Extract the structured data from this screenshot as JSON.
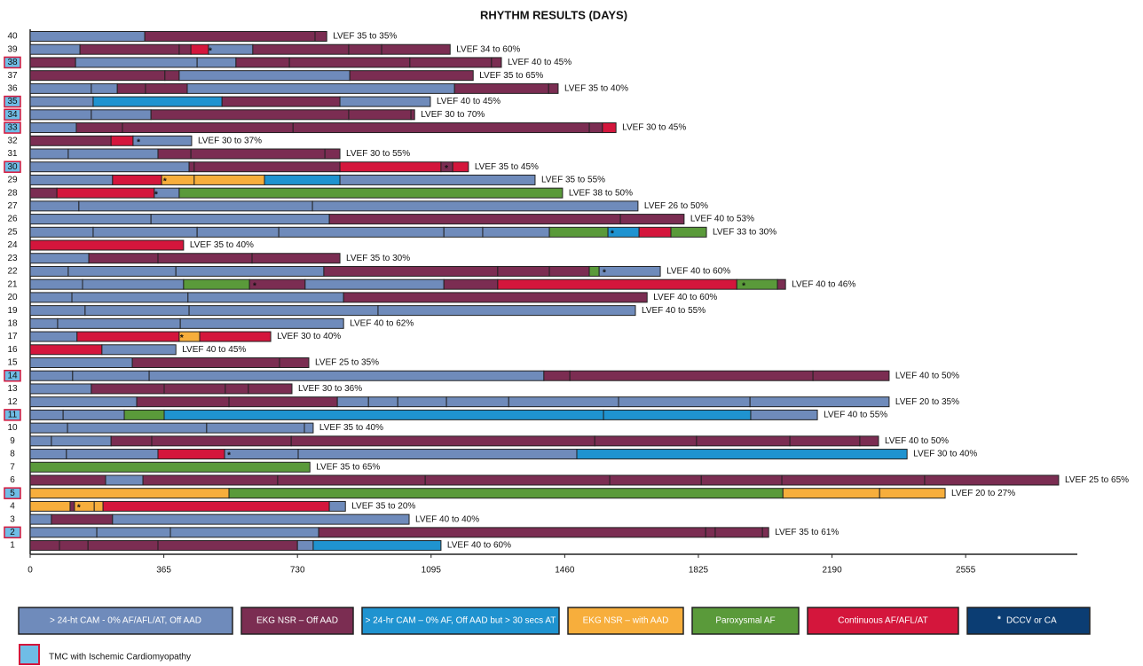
{
  "chart_data": {
    "type": "timeline",
    "title": "RHYTHM RESULTS (DAYS)",
    "xlim": [
      0,
      2860
    ],
    "xticks": [
      0,
      365,
      730,
      1095,
      1460,
      1825,
      2190,
      2555
    ],
    "states": [
      {
        "name": "> 24-ht CAM - 0% AF/AFL/AT, Off AAD",
        "color": "#6f8bbb"
      },
      {
        "name": "EKG NSR – Off AAD",
        "color": "#7b2d52"
      },
      {
        "name": "> 24-hr CAM – 0% AF, Off AAD but > 30 secs AT",
        "color": "#1f93d0"
      },
      {
        "name": "EKG NSR – with AAD",
        "color": "#f7ae3c"
      },
      {
        "name": "Paroxysmal AF",
        "color": "#5a9a3a"
      },
      {
        "name": "Continuous AF/AFL/AT",
        "color": "#d4163c"
      }
    ],
    "star_legend": {
      "symbol": "*",
      "name": "DCCV or CA",
      "color": "#0b3d73"
    },
    "ischemic_legend": {
      "name": "TMC with Ischemic Cardiomyopathy",
      "fill": "#6fbde6",
      "border": "#d4163c"
    },
    "rows": [
      {
        "label": "40",
        "annotation": "LVEF 35 to 35%",
        "segments": [
          [
            0,
            313
          ],
          [
            1,
            465
          ],
          [
            1,
            32
          ]
        ]
      },
      {
        "label": "39",
        "annotation": "LVEF 34 to 60%",
        "segments": [
          [
            0,
            136
          ],
          [
            1,
            271
          ],
          [
            1,
            32
          ],
          [
            5,
            48
          ],
          [
            0,
            121
          ],
          [
            1,
            262
          ],
          [
            1,
            90
          ],
          [
            1,
            187
          ]
        ],
        "stars": [
          492
        ]
      },
      {
        "label": "38",
        "ischemic": true,
        "annotation": "LVEF 40 to 45%",
        "segments": [
          [
            1,
            124
          ],
          [
            0,
            332
          ],
          [
            0,
            106
          ],
          [
            1,
            146
          ],
          [
            1,
            329
          ],
          [
            1,
            223
          ],
          [
            1,
            27
          ]
        ]
      },
      {
        "label": "37",
        "annotation": "LVEF 35 to 65%",
        "segments": [
          [
            1,
            368
          ],
          [
            1,
            39
          ],
          [
            0,
            466
          ],
          [
            1,
            337
          ]
        ]
      },
      {
        "label": "36",
        "annotation": "LVEF 35 to 40%",
        "segments": [
          [
            0,
            167
          ],
          [
            0,
            71
          ],
          [
            1,
            77
          ],
          [
            1,
            114
          ],
          [
            0,
            730
          ],
          [
            1,
            257
          ],
          [
            1,
            26
          ]
        ]
      },
      {
        "label": "35",
        "ischemic": true,
        "annotation": "LVEF 40 to 45%",
        "segments": [
          [
            0,
            172
          ],
          [
            2,
            352
          ],
          [
            1,
            322
          ],
          [
            0,
            247
          ]
        ]
      },
      {
        "label": "34",
        "ischemic": true,
        "annotation": "LVEF 30 to 70%",
        "segments": [
          [
            0,
            167
          ],
          [
            0,
            163
          ],
          [
            1,
            540
          ],
          [
            1,
            170
          ],
          [
            1,
            10
          ]
        ]
      },
      {
        "label": "33",
        "ischemic": true,
        "annotation": "LVEF 30 to 45%",
        "segments": [
          [
            0,
            126
          ],
          [
            1,
            126
          ],
          [
            1,
            466
          ],
          [
            1,
            809
          ],
          [
            1,
            36
          ],
          [
            5,
            37
          ]
        ]
      },
      {
        "label": "32",
        "annotation": "LVEF 30 to 37%",
        "segments": [
          [
            1,
            221
          ],
          [
            5,
            60
          ],
          [
            0,
            160
          ]
        ],
        "stars": [
          296
        ]
      },
      {
        "label": "31",
        "annotation": "LVEF 30 to 55%",
        "segments": [
          [
            0,
            104
          ],
          [
            0,
            245
          ],
          [
            1,
            90
          ],
          [
            1,
            366
          ],
          [
            1,
            41
          ]
        ]
      },
      {
        "label": "30",
        "ischemic": true,
        "annotation": "LVEF 35 to 45%",
        "segments": [
          [
            0,
            434
          ],
          [
            1,
            14
          ],
          [
            1,
            398
          ],
          [
            5,
            276
          ],
          [
            1,
            32
          ],
          [
            5,
            43
          ]
        ],
        "stars": [
          1137
        ]
      },
      {
        "label": "29",
        "annotation": "LVEF 35 to 55%",
        "segments": [
          [
            0,
            225
          ],
          [
            5,
            134
          ],
          [
            3,
            89
          ],
          [
            3,
            192
          ],
          [
            2,
            206
          ],
          [
            0,
            533
          ]
        ],
        "stars": [
          368
        ]
      },
      {
        "label": "28",
        "annotation": "LVEF 38 to 50%",
        "segments": [
          [
            1,
            73
          ],
          [
            5,
            266
          ],
          [
            0,
            68
          ],
          [
            4,
            1047
          ]
        ],
        "stars": [
          344
        ]
      },
      {
        "label": "27",
        "annotation": "LVEF 26 to 50%",
        "segments": [
          [
            0,
            133
          ],
          [
            0,
            638
          ],
          [
            0,
            889
          ]
        ]
      },
      {
        "label": "26",
        "annotation": "LVEF 40 to 53%",
        "segments": [
          [
            0,
            330
          ],
          [
            0,
            487
          ],
          [
            1,
            795
          ],
          [
            1,
            174
          ]
        ]
      },
      {
        "label": "25",
        "annotation": "LVEF 33 to 30%",
        "segments": [
          [
            0,
            172
          ],
          [
            0,
            284
          ],
          [
            0,
            223
          ],
          [
            0,
            451
          ],
          [
            0,
            106
          ],
          [
            0,
            182
          ],
          [
            4,
            160
          ],
          [
            2,
            85
          ],
          [
            5,
            87
          ],
          [
            4,
            97
          ]
        ],
        "stars": [
          1590
        ]
      },
      {
        "label": "24",
        "annotation": "LVEF 35 to 40%",
        "segments": [
          [
            5,
            419
          ]
        ]
      },
      {
        "label": "23",
        "annotation": "LVEF 35 to 30%",
        "segments": [
          [
            0,
            160
          ],
          [
            1,
            189
          ],
          [
            1,
            257
          ],
          [
            1,
            240
          ]
        ]
      },
      {
        "label": "22",
        "annotation": "LVEF 40 to 60%",
        "segments": [
          [
            0,
            104
          ],
          [
            0,
            294
          ],
          [
            0,
            404
          ],
          [
            1,
            475
          ],
          [
            1,
            141
          ],
          [
            1,
            109
          ],
          [
            4,
            27
          ],
          [
            0,
            167
          ]
        ],
        "stars": [
          1568
        ]
      },
      {
        "label": "21",
        "annotation": "LVEF 40 to 46%",
        "segments": [
          [
            0,
            143
          ],
          [
            0,
            276
          ],
          [
            4,
            180
          ],
          [
            1,
            152
          ],
          [
            0,
            379
          ],
          [
            1,
            147
          ],
          [
            5,
            653
          ],
          [
            4,
            111
          ],
          [
            1,
            22
          ]
        ],
        "stars": [
          613,
          1949
        ]
      },
      {
        "label": "20",
        "annotation": "LVEF 40 to 60%",
        "segments": [
          [
            0,
            114
          ],
          [
            0,
            317
          ],
          [
            0,
            425
          ],
          [
            1,
            829
          ]
        ]
      },
      {
        "label": "19",
        "annotation": "LVEF 40 to 55%",
        "segments": [
          [
            0,
            150
          ],
          [
            0,
            284
          ],
          [
            0,
            516
          ],
          [
            0,
            703
          ]
        ]
      },
      {
        "label": "18",
        "annotation": "LVEF 40 to 62%",
        "segments": [
          [
            0,
            75
          ],
          [
            0,
            335
          ],
          [
            0,
            446
          ]
        ]
      },
      {
        "label": "17",
        "annotation": "LVEF 30 to 40%",
        "segments": [
          [
            0,
            128
          ],
          [
            5,
            279
          ],
          [
            3,
            56
          ],
          [
            5,
            194
          ]
        ],
        "stars": [
          414
        ]
      },
      {
        "label": "16",
        "annotation": "LVEF 40 to 45%",
        "segments": [
          [
            5,
            196
          ],
          [
            0,
            202
          ]
        ]
      },
      {
        "label": "15",
        "annotation": "LVEF 25 to 35%",
        "segments": [
          [
            0,
            279
          ],
          [
            1,
            402
          ],
          [
            1,
            80
          ]
        ]
      },
      {
        "label": "14",
        "ischemic": true,
        "annotation": "LVEF 40 to 50%",
        "segments": [
          [
            0,
            116
          ],
          [
            0,
            209
          ],
          [
            0,
            1078
          ],
          [
            1,
            71
          ],
          [
            1,
            664
          ],
          [
            1,
            208
          ]
        ]
      },
      {
        "label": "13",
        "annotation": "LVEF 30 to 36%",
        "segments": [
          [
            0,
            167
          ],
          [
            1,
            199
          ],
          [
            1,
            167
          ],
          [
            1,
            63
          ],
          [
            1,
            119
          ]
        ]
      },
      {
        "label": "12",
        "annotation": "LVEF 20 to 35%",
        "segments": [
          [
            0,
            291
          ],
          [
            1,
            252
          ],
          [
            1,
            296
          ],
          [
            0,
            85
          ],
          [
            0,
            80
          ],
          [
            0,
            133
          ],
          [
            0,
            170
          ],
          [
            0,
            300
          ],
          [
            0,
            359
          ],
          [
            0,
            380
          ]
        ]
      },
      {
        "label": "11",
        "ischemic": true,
        "annotation": "LVEF 40 to 55%",
        "segments": [
          [
            0,
            90
          ],
          [
            0,
            167
          ],
          [
            4,
            109
          ],
          [
            2,
            1200
          ],
          [
            2,
            402
          ],
          [
            0,
            182
          ]
        ]
      },
      {
        "label": "10",
        "annotation": "LVEF 35 to 40%",
        "segments": [
          [
            0,
            102
          ],
          [
            0,
            380
          ],
          [
            0,
            267
          ],
          [
            0,
            24
          ]
        ]
      },
      {
        "label": "9",
        "annotation": "LVEF 40 to 50%",
        "segments": [
          [
            0,
            58
          ],
          [
            0,
            163
          ],
          [
            1,
            111
          ],
          [
            1,
            381
          ],
          [
            1,
            829
          ],
          [
            1,
            278
          ],
          [
            1,
            255
          ],
          [
            1,
            191
          ],
          [
            1,
            51
          ]
        ]
      },
      {
        "label": "8",
        "annotation": "LVEF 30 to 40%",
        "segments": [
          [
            0,
            99
          ],
          [
            0,
            250
          ],
          [
            5,
            182
          ],
          [
            0,
            201
          ],
          [
            0,
            761
          ],
          [
            2,
            902
          ]
        ],
        "stars": [
          543
        ]
      },
      {
        "label": "7",
        "annotation": "LVEF 35 to 65%",
        "segments": [
          [
            4,
            764
          ]
        ]
      },
      {
        "label": "6",
        "annotation": "LVEF 25 to 65%",
        "segments": [
          [
            1,
            206
          ],
          [
            0,
            102
          ],
          [
            1,
            368
          ],
          [
            1,
            403
          ],
          [
            1,
            504
          ],
          [
            1,
            250
          ],
          [
            1,
            220
          ],
          [
            1,
            390
          ],
          [
            1,
            366
          ]
        ]
      },
      {
        "label": "5",
        "ischemic": true,
        "annotation": "LVEF 20 to 27%",
        "segments": [
          [
            3,
            543
          ],
          [
            4,
            1513
          ],
          [
            3,
            264
          ],
          [
            3,
            179
          ]
        ]
      },
      {
        "label": "4",
        "annotation": "LVEF 35 to 20%",
        "segments": [
          [
            3,
            109
          ],
          [
            1,
            12
          ],
          [
            3,
            54
          ],
          [
            3,
            24
          ],
          [
            5,
            618
          ],
          [
            0,
            44
          ]
        ],
        "stars": [
          133
        ]
      },
      {
        "label": "3",
        "annotation": "LVEF 40 to 40%",
        "segments": [
          [
            0,
            58
          ],
          [
            1,
            167
          ],
          [
            0,
            810
          ]
        ]
      },
      {
        "label": "2",
        "ischemic": true,
        "annotation": "LVEF 35 to 61%",
        "segments": [
          [
            0,
            182
          ],
          [
            0,
            201
          ],
          [
            0,
            405
          ],
          [
            1,
            1057
          ],
          [
            1,
            26
          ],
          [
            1,
            129
          ],
          [
            1,
            17
          ]
        ]
      },
      {
        "label": "1",
        "annotation": "LVEF 40 to 60%",
        "segments": [
          [
            1,
            80
          ],
          [
            1,
            78
          ],
          [
            1,
            191
          ],
          [
            1,
            381
          ],
          [
            0,
            43
          ],
          [
            2,
            349
          ]
        ]
      }
    ]
  }
}
